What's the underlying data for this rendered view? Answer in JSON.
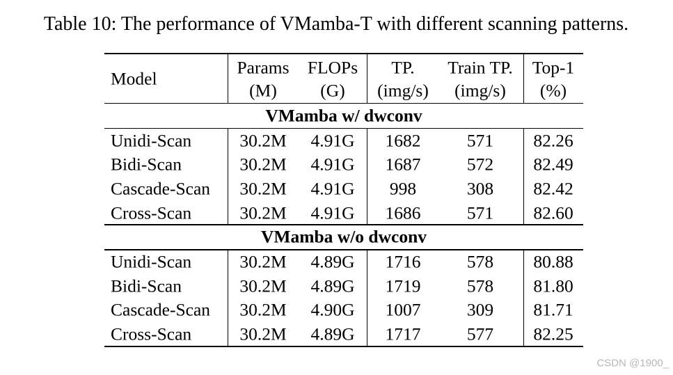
{
  "title": "Table 10: The performance of VMamba-T with different scanning patterns.",
  "table": {
    "header": [
      [
        "Model"
      ],
      [
        "Params",
        "(M)"
      ],
      [
        "FLOPs",
        "(G)"
      ],
      [
        "TP.",
        "(img/s)"
      ],
      [
        "Train TP.",
        "(img/s)"
      ],
      [
        "Top-1",
        "(%)"
      ]
    ],
    "sections": [
      {
        "title": "VMamba w/ dwconv",
        "rows": [
          [
            "Unidi-Scan",
            "30.2M",
            "4.91G",
            "1682",
            "571",
            "82.26"
          ],
          [
            "Bidi-Scan",
            "30.2M",
            "4.91G",
            "1687",
            "572",
            "82.49"
          ],
          [
            "Cascade-Scan",
            "30.2M",
            "4.91G",
            "998",
            "308",
            "82.42"
          ],
          [
            "Cross-Scan",
            "30.2M",
            "4.91G",
            "1686",
            "571",
            "82.60"
          ]
        ]
      },
      {
        "title": "VMamba w/o dwconv",
        "rows": [
          [
            "Unidi-Scan",
            "30.2M",
            "4.89G",
            "1716",
            "578",
            "80.88"
          ],
          [
            "Bidi-Scan",
            "30.2M",
            "4.89G",
            "1719",
            "578",
            "81.80"
          ],
          [
            "Cascade-Scan",
            "30.2M",
            "4.90G",
            "1007",
            "309",
            "81.71"
          ],
          [
            "Cross-Scan",
            "30.2M",
            "4.89G",
            "1717",
            "577",
            "82.25"
          ]
        ]
      }
    ]
  },
  "watermark": "CSDN @1900_"
}
